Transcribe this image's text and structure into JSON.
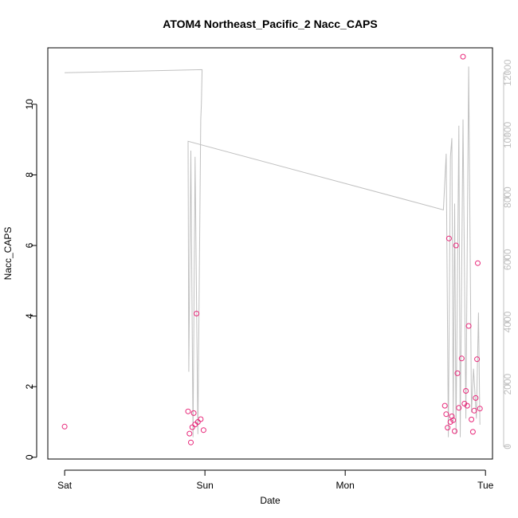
{
  "chart_data": {
    "type": "scatter",
    "title": "ATOM4 Northeast_Pacific_2 Nacc_CAPS",
    "xlabel": "Date",
    "ylabel": "Nacc_CAPS",
    "x_ticks": [
      {
        "label": "Sat",
        "t": 0
      },
      {
        "label": "Sun",
        "t": 1
      },
      {
        "label": "Mon",
        "t": 2
      },
      {
        "label": "Tue",
        "t": 3
      }
    ],
    "xlim": [
      -0.12,
      3.05
    ],
    "ylim": [
      -0.05,
      11.6
    ],
    "y_ticks": [
      0,
      2,
      4,
      6,
      8,
      10
    ],
    "y2lim": [
      -400,
      12800
    ],
    "y2_ticks": [
      0,
      2000,
      4000,
      6000,
      8000,
      10000,
      12000
    ],
    "y2_tick_labels": [
      "0",
      "2000",
      "4000",
      "6000",
      "8000",
      "10000",
      "12000"
    ],
    "grid": false,
    "legend": "none",
    "colors": {
      "points": "#e8287a",
      "line": "#c0c0c0",
      "axis": "#000000",
      "axis2": "#c0c0c0"
    },
    "points": [
      {
        "t": 0.0,
        "y": 0.87
      },
      {
        "t": 0.88,
        "y": 1.3
      },
      {
        "t": 0.89,
        "y": 0.67
      },
      {
        "t": 0.9,
        "y": 0.42
      },
      {
        "t": 0.91,
        "y": 0.85
      },
      {
        "t": 0.92,
        "y": 1.25
      },
      {
        "t": 0.93,
        "y": 0.93
      },
      {
        "t": 0.94,
        "y": 4.07
      },
      {
        "t": 0.95,
        "y": 1.0
      },
      {
        "t": 0.97,
        "y": 1.08
      },
      {
        "t": 0.99,
        "y": 0.77
      },
      {
        "t": 2.71,
        "y": 1.46
      },
      {
        "t": 2.72,
        "y": 1.22
      },
      {
        "t": 2.73,
        "y": 0.84
      },
      {
        "t": 2.74,
        "y": 6.2
      },
      {
        "t": 2.75,
        "y": 1.0
      },
      {
        "t": 2.76,
        "y": 1.16
      },
      {
        "t": 2.77,
        "y": 1.05
      },
      {
        "t": 2.78,
        "y": 0.74
      },
      {
        "t": 2.79,
        "y": 6.0
      },
      {
        "t": 2.8,
        "y": 2.38
      },
      {
        "t": 2.81,
        "y": 1.4
      },
      {
        "t": 2.83,
        "y": 2.8
      },
      {
        "t": 2.84,
        "y": 11.35
      },
      {
        "t": 2.85,
        "y": 1.52
      },
      {
        "t": 2.86,
        "y": 1.88
      },
      {
        "t": 2.87,
        "y": 1.46
      },
      {
        "t": 2.88,
        "y": 3.72
      },
      {
        "t": 2.9,
        "y": 1.07
      },
      {
        "t": 2.91,
        "y": 0.72
      },
      {
        "t": 2.92,
        "y": 1.32
      },
      {
        "t": 2.93,
        "y": 1.68
      },
      {
        "t": 2.94,
        "y": 2.78
      },
      {
        "t": 2.945,
        "y": 5.5
      },
      {
        "t": 2.96,
        "y": 1.38
      }
    ],
    "line_y2": [
      {
        "t": 0.0,
        "v": 12000
      },
      {
        "t": 0.98,
        "v": 12100
      },
      {
        "t": 0.975,
        "v": 11000
      },
      {
        "t": 0.97,
        "v": 10500
      },
      {
        "t": 0.95,
        "v": 400
      },
      {
        "t": 0.93,
        "v": 9300
      },
      {
        "t": 0.915,
        "v": 300
      },
      {
        "t": 0.9,
        "v": 9500
      },
      {
        "t": 0.885,
        "v": 2400
      },
      {
        "t": 0.88,
        "v": 9800
      },
      {
        "t": 2.7,
        "v": 7600
      },
      {
        "t": 2.72,
        "v": 9400
      },
      {
        "t": 2.735,
        "v": 300
      },
      {
        "t": 2.75,
        "v": 9300
      },
      {
        "t": 2.76,
        "v": 9900
      },
      {
        "t": 2.77,
        "v": 800
      },
      {
        "t": 2.78,
        "v": 7800
      },
      {
        "t": 2.79,
        "v": 400
      },
      {
        "t": 2.81,
        "v": 10300
      },
      {
        "t": 2.82,
        "v": 300
      },
      {
        "t": 2.84,
        "v": 10500
      },
      {
        "t": 2.86,
        "v": 900
      },
      {
        "t": 2.88,
        "v": 12200
      },
      {
        "t": 2.9,
        "v": 1100
      },
      {
        "t": 2.915,
        "v": 2500
      },
      {
        "t": 2.935,
        "v": 900
      },
      {
        "t": 2.95,
        "v": 4300
      },
      {
        "t": 2.96,
        "v": 700
      }
    ]
  }
}
